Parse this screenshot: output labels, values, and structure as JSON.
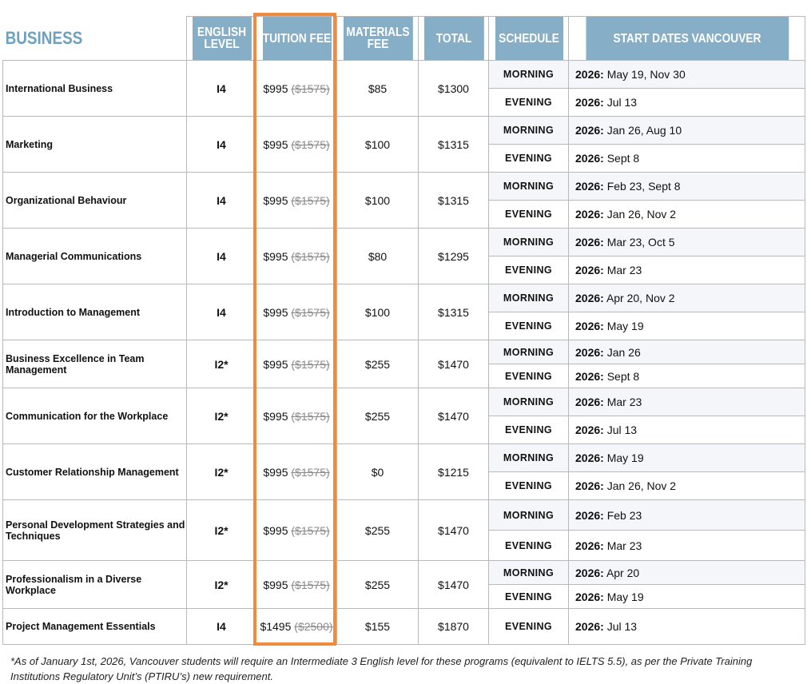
{
  "header": {
    "section": "BUSINESS",
    "english_level": "ENGLISH LEVEL",
    "tuition_fee": "TUITION FEE",
    "materials_fee": "MATERIALS FEE",
    "total": "TOTAL",
    "schedule": "SCHEDULE",
    "start_dates": "START DATES VANCOUVER"
  },
  "year_label": "2026:",
  "courses": [
    {
      "name": "International Business",
      "level": "I4",
      "fee": "$995",
      "old_fee": "($1575)",
      "materials": "$85",
      "total": "$1300",
      "sessions": [
        {
          "schedule": "MORNING",
          "dates": "May 19, Nov 30"
        },
        {
          "schedule": "EVENING",
          "dates": "Jul 13"
        }
      ]
    },
    {
      "name": "Marketing",
      "level": "I4",
      "fee": "$995",
      "old_fee": "($1575)",
      "materials": "$100",
      "total": "$1315",
      "sessions": [
        {
          "schedule": "MORNING",
          "dates": "Jan 26, Aug 10"
        },
        {
          "schedule": "EVENING",
          "dates": "Sept 8"
        }
      ]
    },
    {
      "name": "Organizational Behaviour",
      "level": "I4",
      "fee": "$995",
      "old_fee": "($1575)",
      "materials": "$100",
      "total": "$1315",
      "sessions": [
        {
          "schedule": "MORNING",
          "dates": "Feb 23, Sept 8"
        },
        {
          "schedule": "EVENING",
          "dates": "Jan 26, Nov 2"
        }
      ]
    },
    {
      "name": "Managerial Communications",
      "level": "I4",
      "fee": "$995",
      "old_fee": "($1575)",
      "materials": "$80",
      "total": "$1295",
      "sessions": [
        {
          "schedule": "MORNING",
          "dates": "Mar 23, Oct 5"
        },
        {
          "schedule": "EVENING",
          "dates": "Mar 23"
        }
      ]
    },
    {
      "name": "Introduction to Management",
      "level": "I4",
      "fee": "$995",
      "old_fee": "($1575)",
      "materials": "$100",
      "total": "$1315",
      "sessions": [
        {
          "schedule": "MORNING",
          "dates": "Apr 20, Nov 2"
        },
        {
          "schedule": "EVENING",
          "dates": "May 19"
        }
      ]
    },
    {
      "name": "Business Excellence in Team Management",
      "level": "I2*",
      "fee": "$995",
      "old_fee": "($1575)",
      "materials": "$255",
      "total": "$1470",
      "sessions": [
        {
          "schedule": "MORNING",
          "dates": "Jan 26"
        },
        {
          "schedule": "EVENING",
          "dates": "Sept 8"
        }
      ]
    },
    {
      "name": "Communication for the Workplace",
      "level": "I2*",
      "fee": "$995",
      "old_fee": "($1575)",
      "materials": "$255",
      "total": "$1470",
      "sessions": [
        {
          "schedule": "MORNING",
          "dates": "Mar 23"
        },
        {
          "schedule": "EVENING",
          "dates": "Jul 13"
        }
      ]
    },
    {
      "name": "Customer Relationship Management",
      "level": "I2*",
      "fee": "$995",
      "old_fee": "($1575)",
      "materials": "$0",
      "total": "$1215",
      "sessions": [
        {
          "schedule": "MORNING",
          "dates": "May 19"
        },
        {
          "schedule": "EVENING",
          "dates": "Jan 26, Nov 2"
        }
      ]
    },
    {
      "name": "Personal Development Strategies and Techniques",
      "level": "I2*",
      "fee": "$995",
      "old_fee": "($1575)",
      "materials": "$255",
      "total": "$1470",
      "sessions": [
        {
          "schedule": "MORNING",
          "dates": "Feb 23"
        },
        {
          "schedule": "EVENING",
          "dates": "Mar 23"
        }
      ]
    },
    {
      "name": "Professionalism in a Diverse Workplace",
      "level": "I2*",
      "fee": "$995",
      "old_fee": "($1575)",
      "materials": "$255",
      "total": "$1470",
      "sessions": [
        {
          "schedule": "MORNING",
          "dates": "Apr 20"
        },
        {
          "schedule": "EVENING",
          "dates": "May 19"
        }
      ]
    },
    {
      "name": "Project Management Essentials",
      "level": "I4",
      "fee": "$1495",
      "old_fee": "($2500)",
      "materials": "$155",
      "total": "$1870",
      "sessions": [
        {
          "schedule": "EVENING",
          "dates": "Jul 13"
        }
      ]
    }
  ],
  "footnote": "*As of January 1st, 2026, Vancouver students will require an Intermediate 3 English level for these programs (equivalent to IELTS 5.5), as per the Private Training Institutions Regulatory Unit’s (PTIRU’s) new requirement.",
  "colors": {
    "header_bg": "#86aec6",
    "section_title": "#6ea0bf",
    "highlight_border": "#f08a3e",
    "strikethrough": "#8a8a8a"
  }
}
